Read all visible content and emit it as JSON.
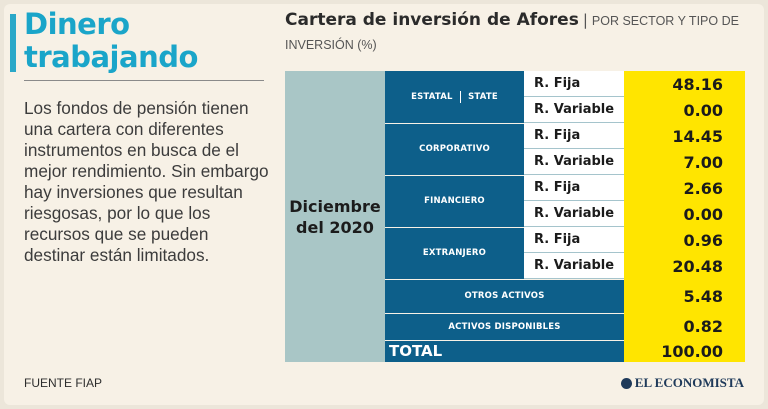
{
  "headline": {
    "line1": "Dinero",
    "line2": "trabajando"
  },
  "body": "Los fondos de pensión tienen una cartera con diferentes instrumentos en busca de el mejor rendimiento. Sin embargo hay inversiones que resultan riesgosas, por lo que los recursos que se pueden destinar están limitados.",
  "title": {
    "main": "Cartera de inversión de Afores",
    "sub": "POR SECTOR Y TIPO DE",
    "sub2": "INVERSIÓN (%)"
  },
  "period": {
    "line1": "Diciembre",
    "line2": "del 2020"
  },
  "sectors": [
    {
      "name_a": "ESTATAL",
      "name_b": "STATE",
      "rows": [
        {
          "type": "R. Fija",
          "value": "48.16"
        },
        {
          "type": "R. Variable",
          "value": "0.00"
        }
      ]
    },
    {
      "name": "CORPORATIVO",
      "rows": [
        {
          "type": "R. Fija",
          "value": "14.45"
        },
        {
          "type": "R. Variable",
          "value": "7.00"
        }
      ]
    },
    {
      "name": "FINANCIERO",
      "rows": [
        {
          "type": "R. Fija",
          "value": "2.66"
        },
        {
          "type": "R. Variable",
          "value": "0.00"
        }
      ]
    },
    {
      "name": "EXTRANJERO",
      "rows": [
        {
          "type": "R. Fija",
          "value": "0.96"
        },
        {
          "type": "R. Variable",
          "value": "20.48"
        }
      ]
    }
  ],
  "otros": {
    "label": "OTROS ACTIVOS",
    "value": "5.48"
  },
  "disponibles": {
    "label": "ACTIVOS DISPONIBLES",
    "value": "0.82"
  },
  "total": {
    "label": "TOTAL",
    "value": "100.00"
  },
  "source": "FUENTE FIAP",
  "logo": "EL ECONOMISTA",
  "colors": {
    "accent": "#1aa5c9",
    "navy": "#0d5f8a",
    "yellow": "#ffe500",
    "teal_gray": "#a9c6c6"
  }
}
